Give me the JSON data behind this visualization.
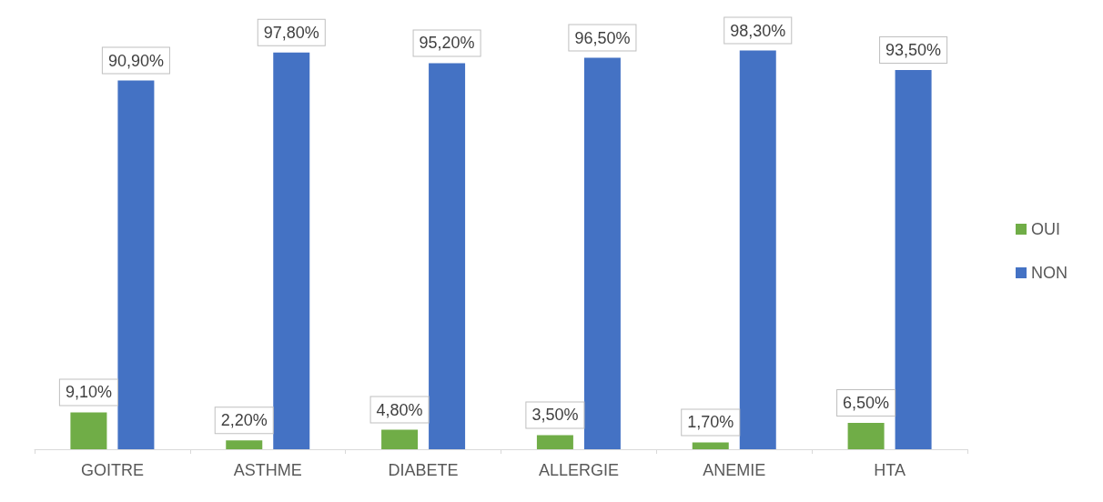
{
  "chart_data": {
    "type": "bar",
    "categories": [
      "GOITRE",
      "ASTHME",
      "DIABETE",
      "ALLERGIE",
      "ANEMIE",
      "HTA"
    ],
    "series": [
      {
        "name": "OUI",
        "color": "#70ad47",
        "values": [
          9.1,
          2.2,
          4.8,
          3.5,
          1.7,
          6.5
        ],
        "value_labels": [
          "9,10%",
          "2,20%",
          "4,80%",
          "3,50%",
          "1,70%",
          "6,50%"
        ]
      },
      {
        "name": "NON",
        "color": "#4472c4",
        "values": [
          90.9,
          97.8,
          95.2,
          96.5,
          98.3,
          93.5
        ],
        "value_labels": [
          "90,90%",
          "97,80%",
          "95,20%",
          "96,50%",
          "98,30%",
          "93,50%"
        ]
      }
    ],
    "legend": "right"
  }
}
